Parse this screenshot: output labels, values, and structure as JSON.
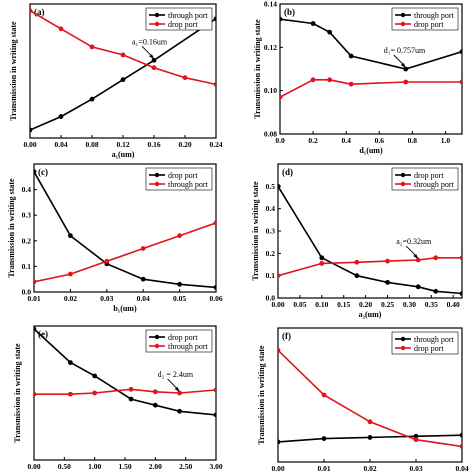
{
  "colors": {
    "black": "#000000",
    "red": "#e0141b"
  },
  "chart_data": [
    {
      "type": "line",
      "tag": "(a)",
      "xlabel": "a₁(um)",
      "ylabel": "Transmission in writing state",
      "xlim": [
        0.0,
        0.24
      ],
      "ylim": [
        0.0,
        0.2
      ],
      "xticks": [
        "0.00",
        "0.04",
        "0.08",
        "0.12",
        "0.16",
        "0.20",
        "0.24"
      ],
      "yticks": [],
      "legend": "top-right",
      "series": [
        {
          "name": "through port",
          "color": "#000000",
          "x": [
            0.0,
            0.04,
            0.08,
            0.12,
            0.16,
            0.24
          ],
          "y": [
            0.012,
            0.032,
            0.058,
            0.087,
            0.116,
            0.178
          ]
        },
        {
          "name": "drop port",
          "color": "#e0141b",
          "x": [
            0.0,
            0.04,
            0.08,
            0.12,
            0.16,
            0.2,
            0.24
          ],
          "y": [
            0.19,
            0.163,
            0.136,
            0.124,
            0.105,
            0.09,
            0.08
          ]
        }
      ],
      "annotation": {
        "text": "a₁=0.16um",
        "x": 0.16,
        "y": 0.116
      }
    },
    {
      "type": "line",
      "tag": "(b)",
      "xlabel": "d₁(um)",
      "ylabel": "Transmission in writing state",
      "xlim": [
        0.0,
        1.1
      ],
      "ylim": [
        0.08,
        0.14
      ],
      "xticks": [
        "0.0",
        "0.2",
        "0.4",
        "0.6",
        "0.8",
        "1.0"
      ],
      "yticks": [
        "0.08",
        "0.10",
        "0.12",
        "0.14"
      ],
      "legend": "top-right",
      "series": [
        {
          "name": "through port",
          "color": "#000000",
          "x": [
            0.0,
            0.2,
            0.3,
            0.43,
            0.76,
            1.1
          ],
          "y": [
            0.133,
            0.131,
            0.127,
            0.116,
            0.11,
            0.118
          ]
        },
        {
          "name": "drop port",
          "color": "#e0141b",
          "x": [
            0.0,
            0.2,
            0.3,
            0.43,
            0.76,
            1.1
          ],
          "y": [
            0.097,
            0.105,
            0.105,
            0.103,
            0.104,
            0.104
          ]
        }
      ],
      "annotation": {
        "text": "d₁= 0.757um",
        "x": 0.76,
        "y": 0.11
      }
    },
    {
      "type": "line",
      "tag": "(c)",
      "xlabel": "b₁(um)",
      "ylabel": "Transmission in writing state",
      "xlim": [
        0.01,
        0.06
      ],
      "ylim": [
        0.0,
        0.5
      ],
      "xticks": [
        "0.01",
        "0.02",
        "0.03",
        "0.04",
        "0.05",
        "0.06"
      ],
      "yticks": [
        "0.0",
        "0.1",
        "0.2",
        "0.3",
        "0.4"
      ],
      "legend": "top-right",
      "series": [
        {
          "name": "drop port",
          "color": "#000000",
          "x": [
            0.01,
            0.02,
            0.03,
            0.04,
            0.05,
            0.06
          ],
          "y": [
            0.47,
            0.22,
            0.11,
            0.05,
            0.03,
            0.018
          ]
        },
        {
          "name": "through port",
          "color": "#e0141b",
          "x": [
            0.01,
            0.02,
            0.03,
            0.04,
            0.05,
            0.06
          ],
          "y": [
            0.04,
            0.07,
            0.12,
            0.17,
            0.22,
            0.27
          ]
        }
      ]
    },
    {
      "type": "line",
      "tag": "(d)",
      "xlabel": "a₂(um)",
      "ylabel": "Transmission in writing state",
      "xlim": [
        0.0,
        0.42
      ],
      "ylim": [
        0.0,
        0.6
      ],
      "xticks": [
        "0.00",
        "0.05",
        "0.10",
        "0.15",
        "0.20",
        "0.25",
        "0.30",
        "0.35",
        "0.40"
      ],
      "yticks": [
        "0.0",
        "0.1",
        "0.2",
        "0.3",
        "0.4",
        "0.5"
      ],
      "legend": "top-right",
      "series": [
        {
          "name": "drop port",
          "color": "#000000",
          "x": [
            0.0,
            0.1,
            0.18,
            0.25,
            0.32,
            0.36,
            0.42
          ],
          "y": [
            0.5,
            0.18,
            0.1,
            0.07,
            0.05,
            0.03,
            0.02
          ]
        },
        {
          "name": "through port",
          "color": "#e0141b",
          "x": [
            0.0,
            0.1,
            0.18,
            0.25,
            0.32,
            0.36,
            0.42
          ],
          "y": [
            0.1,
            0.155,
            0.16,
            0.165,
            0.17,
            0.18,
            0.18
          ]
        }
      ],
      "annotation": {
        "text": "a₂=0.32um",
        "x": 0.32,
        "y": 0.17
      }
    },
    {
      "type": "line",
      "tag": "(e)",
      "xlabel": "",
      "ylabel": "Transmission in writing state",
      "xlim": [
        0.0,
        3.0
      ],
      "ylim": [
        0.0,
        0.22
      ],
      "xticks": [
        "0.00",
        "0.50",
        "1.00",
        "1.50",
        "2.00",
        "2.50",
        "3.00"
      ],
      "yticks": [],
      "legend": "top-right",
      "series": [
        {
          "name": "drop port",
          "color": "#000000",
          "x": [
            0.0,
            0.6,
            1.0,
            1.6,
            2.0,
            2.4,
            3.0
          ],
          "y": [
            0.215,
            0.16,
            0.138,
            0.1,
            0.09,
            0.08,
            0.074
          ]
        },
        {
          "name": "through port",
          "color": "#e0141b",
          "x": [
            0.0,
            0.6,
            1.0,
            1.6,
            2.0,
            2.4,
            3.0
          ],
          "y": [
            0.108,
            0.108,
            0.11,
            0.116,
            0.112,
            0.11,
            0.115
          ]
        }
      ],
      "annotation": {
        "text": "d₂ = 2.4um",
        "x": 2.4,
        "y": 0.11
      }
    },
    {
      "type": "line",
      "tag": "(f)",
      "xlabel": "",
      "ylabel": "Transmission in writing state",
      "xlim": [
        0.0,
        0.04
      ],
      "ylim": [
        0.0,
        0.6
      ],
      "xticks": [
        "0.00",
        "0.01",
        "0.02",
        "0.03",
        "0.04"
      ],
      "yticks": [],
      "legend": "top-right",
      "series": [
        {
          "name": "through port",
          "color": "#000000",
          "x": [
            0.0,
            0.01,
            0.02,
            0.03,
            0.04
          ],
          "y": [
            0.09,
            0.105,
            0.11,
            0.115,
            0.12
          ]
        },
        {
          "name": "drop  port",
          "color": "#e0141b",
          "x": [
            0.0,
            0.01,
            0.02,
            0.03,
            0.04
          ],
          "y": [
            0.5,
            0.3,
            0.18,
            0.1,
            0.07
          ]
        }
      ]
    }
  ]
}
